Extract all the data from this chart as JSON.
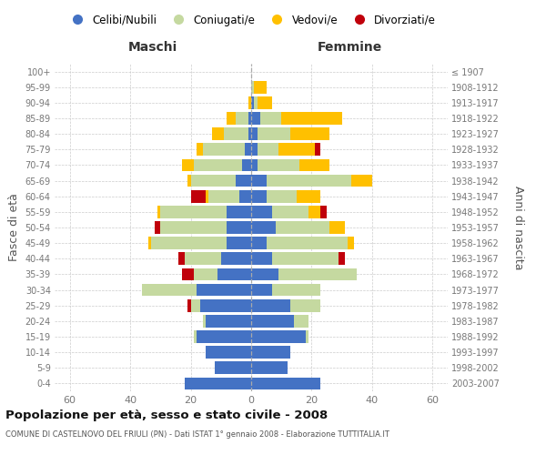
{
  "age_groups": [
    "0-4",
    "5-9",
    "10-14",
    "15-19",
    "20-24",
    "25-29",
    "30-34",
    "35-39",
    "40-44",
    "45-49",
    "50-54",
    "55-59",
    "60-64",
    "65-69",
    "70-74",
    "75-79",
    "80-84",
    "85-89",
    "90-94",
    "95-99",
    "100+"
  ],
  "birth_years": [
    "2003-2007",
    "1998-2002",
    "1993-1997",
    "1988-1992",
    "1983-1987",
    "1978-1982",
    "1973-1977",
    "1968-1972",
    "1963-1967",
    "1958-1962",
    "1953-1957",
    "1948-1952",
    "1943-1947",
    "1938-1942",
    "1933-1937",
    "1928-1932",
    "1923-1927",
    "1918-1922",
    "1913-1917",
    "1908-1912",
    "≤ 1907"
  ],
  "colors": {
    "celibe": "#4472c4",
    "coniugato": "#c5d9a0",
    "vedovo": "#ffc000",
    "divorziato": "#c0000b"
  },
  "male": {
    "celibe": [
      22,
      12,
      15,
      18,
      15,
      17,
      18,
      11,
      10,
      8,
      8,
      8,
      4,
      5,
      3,
      2,
      1,
      1,
      0,
      0,
      0
    ],
    "coniugato": [
      0,
      0,
      0,
      1,
      1,
      3,
      18,
      8,
      12,
      25,
      22,
      22,
      10,
      15,
      16,
      14,
      8,
      4,
      0,
      0,
      0
    ],
    "vedovo": [
      0,
      0,
      0,
      0,
      0,
      0,
      0,
      0,
      0,
      1,
      0,
      1,
      1,
      1,
      4,
      2,
      4,
      3,
      1,
      0,
      0
    ],
    "divorziato": [
      0,
      0,
      0,
      0,
      0,
      1,
      0,
      4,
      2,
      0,
      2,
      0,
      5,
      0,
      0,
      0,
      0,
      0,
      0,
      0,
      0
    ]
  },
  "female": {
    "celibe": [
      23,
      12,
      13,
      18,
      14,
      13,
      7,
      9,
      7,
      5,
      8,
      7,
      5,
      5,
      2,
      2,
      2,
      3,
      1,
      0,
      0
    ],
    "coniugato": [
      0,
      0,
      0,
      1,
      5,
      10,
      16,
      26,
      22,
      27,
      18,
      12,
      10,
      28,
      14,
      7,
      11,
      7,
      1,
      1,
      0
    ],
    "vedovo": [
      0,
      0,
      0,
      0,
      0,
      0,
      0,
      0,
      0,
      2,
      5,
      4,
      8,
      7,
      10,
      12,
      13,
      20,
      5,
      4,
      0
    ],
    "divorziato": [
      0,
      0,
      0,
      0,
      0,
      0,
      0,
      0,
      2,
      0,
      0,
      2,
      0,
      0,
      0,
      2,
      0,
      0,
      0,
      0,
      0
    ]
  },
  "xlim": 65,
  "xtick_step": 20,
  "title": "Popolazione per età, sesso e stato civile - 2008",
  "subtitle": "COMUNE DI CASTELNOVO DEL FRIULI (PN) - Dati ISTAT 1° gennaio 2008 - Elaborazione TUTTITALIA.IT",
  "ylabel_left": "Fasce di età",
  "ylabel_right": "Anni di nascita",
  "xlabel_left": "Maschi",
  "xlabel_right": "Femmine",
  "legend_labels": [
    "Celibi/Nubili",
    "Coniugati/e",
    "Vedovi/e",
    "Divorziati/e"
  ],
  "background_color": "#ffffff",
  "grid_color": "#cccccc",
  "tick_color": "#777777",
  "label_color": "#555555",
  "center_line_color": "#aaaaaa"
}
